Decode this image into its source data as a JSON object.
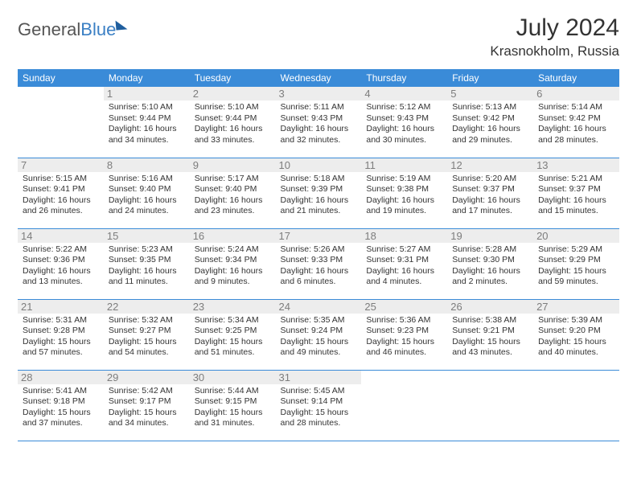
{
  "logo": {
    "word1": "General",
    "word2": "Blue"
  },
  "title": "July 2024",
  "location": "Krasnokholm, Russia",
  "colors": {
    "header_bg": "#3a8bd8",
    "header_text": "#ffffff",
    "daynum_bg": "#ededed",
    "daynum_text": "#7d7d7d",
    "body_text": "#333333",
    "border": "#3a8bd8",
    "logo_gray": "#555555",
    "logo_blue": "#3a7fc4"
  },
  "weekdays": [
    "Sunday",
    "Monday",
    "Tuesday",
    "Wednesday",
    "Thursday",
    "Friday",
    "Saturday"
  ],
  "weeks": [
    [
      null,
      {
        "n": "1",
        "sr": "5:10 AM",
        "ss": "9:44 PM",
        "dl": "Daylight: 16 hours and 34 minutes."
      },
      {
        "n": "2",
        "sr": "5:10 AM",
        "ss": "9:44 PM",
        "dl": "Daylight: 16 hours and 33 minutes."
      },
      {
        "n": "3",
        "sr": "5:11 AM",
        "ss": "9:43 PM",
        "dl": "Daylight: 16 hours and 32 minutes."
      },
      {
        "n": "4",
        "sr": "5:12 AM",
        "ss": "9:43 PM",
        "dl": "Daylight: 16 hours and 30 minutes."
      },
      {
        "n": "5",
        "sr": "5:13 AM",
        "ss": "9:42 PM",
        "dl": "Daylight: 16 hours and 29 minutes."
      },
      {
        "n": "6",
        "sr": "5:14 AM",
        "ss": "9:42 PM",
        "dl": "Daylight: 16 hours and 28 minutes."
      }
    ],
    [
      {
        "n": "7",
        "sr": "5:15 AM",
        "ss": "9:41 PM",
        "dl": "Daylight: 16 hours and 26 minutes."
      },
      {
        "n": "8",
        "sr": "5:16 AM",
        "ss": "9:40 PM",
        "dl": "Daylight: 16 hours and 24 minutes."
      },
      {
        "n": "9",
        "sr": "5:17 AM",
        "ss": "9:40 PM",
        "dl": "Daylight: 16 hours and 23 minutes."
      },
      {
        "n": "10",
        "sr": "5:18 AM",
        "ss": "9:39 PM",
        "dl": "Daylight: 16 hours and 21 minutes."
      },
      {
        "n": "11",
        "sr": "5:19 AM",
        "ss": "9:38 PM",
        "dl": "Daylight: 16 hours and 19 minutes."
      },
      {
        "n": "12",
        "sr": "5:20 AM",
        "ss": "9:37 PM",
        "dl": "Daylight: 16 hours and 17 minutes."
      },
      {
        "n": "13",
        "sr": "5:21 AM",
        "ss": "9:37 PM",
        "dl": "Daylight: 16 hours and 15 minutes."
      }
    ],
    [
      {
        "n": "14",
        "sr": "5:22 AM",
        "ss": "9:36 PM",
        "dl": "Daylight: 16 hours and 13 minutes."
      },
      {
        "n": "15",
        "sr": "5:23 AM",
        "ss": "9:35 PM",
        "dl": "Daylight: 16 hours and 11 minutes."
      },
      {
        "n": "16",
        "sr": "5:24 AM",
        "ss": "9:34 PM",
        "dl": "Daylight: 16 hours and 9 minutes."
      },
      {
        "n": "17",
        "sr": "5:26 AM",
        "ss": "9:33 PM",
        "dl": "Daylight: 16 hours and 6 minutes."
      },
      {
        "n": "18",
        "sr": "5:27 AM",
        "ss": "9:31 PM",
        "dl": "Daylight: 16 hours and 4 minutes."
      },
      {
        "n": "19",
        "sr": "5:28 AM",
        "ss": "9:30 PM",
        "dl": "Daylight: 16 hours and 2 minutes."
      },
      {
        "n": "20",
        "sr": "5:29 AM",
        "ss": "9:29 PM",
        "dl": "Daylight: 15 hours and 59 minutes."
      }
    ],
    [
      {
        "n": "21",
        "sr": "5:31 AM",
        "ss": "9:28 PM",
        "dl": "Daylight: 15 hours and 57 minutes."
      },
      {
        "n": "22",
        "sr": "5:32 AM",
        "ss": "9:27 PM",
        "dl": "Daylight: 15 hours and 54 minutes."
      },
      {
        "n": "23",
        "sr": "5:34 AM",
        "ss": "9:25 PM",
        "dl": "Daylight: 15 hours and 51 minutes."
      },
      {
        "n": "24",
        "sr": "5:35 AM",
        "ss": "9:24 PM",
        "dl": "Daylight: 15 hours and 49 minutes."
      },
      {
        "n": "25",
        "sr": "5:36 AM",
        "ss": "9:23 PM",
        "dl": "Daylight: 15 hours and 46 minutes."
      },
      {
        "n": "26",
        "sr": "5:38 AM",
        "ss": "9:21 PM",
        "dl": "Daylight: 15 hours and 43 minutes."
      },
      {
        "n": "27",
        "sr": "5:39 AM",
        "ss": "9:20 PM",
        "dl": "Daylight: 15 hours and 40 minutes."
      }
    ],
    [
      {
        "n": "28",
        "sr": "5:41 AM",
        "ss": "9:18 PM",
        "dl": "Daylight: 15 hours and 37 minutes."
      },
      {
        "n": "29",
        "sr": "5:42 AM",
        "ss": "9:17 PM",
        "dl": "Daylight: 15 hours and 34 minutes."
      },
      {
        "n": "30",
        "sr": "5:44 AM",
        "ss": "9:15 PM",
        "dl": "Daylight: 15 hours and 31 minutes."
      },
      {
        "n": "31",
        "sr": "5:45 AM",
        "ss": "9:14 PM",
        "dl": "Daylight: 15 hours and 28 minutes."
      },
      null,
      null,
      null
    ]
  ],
  "labels": {
    "sunrise": "Sunrise:",
    "sunset": "Sunset:"
  }
}
